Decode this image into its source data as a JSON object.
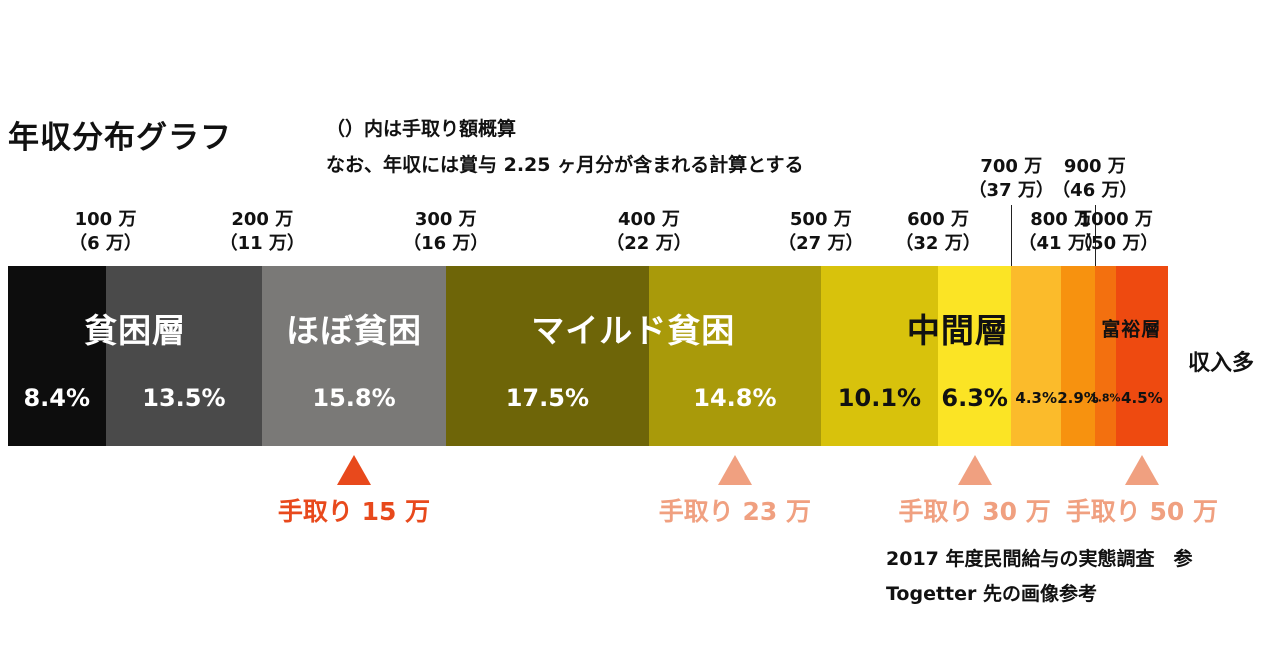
{
  "title": "年収分布グラフ",
  "note_line1": "（）内は手取り額概算",
  "note_line2": "なお、年収には賞与 2.25 ヶ月分が含まれる計算とする",
  "side_label": "収入多",
  "source_line1": "2017 年度民間給与の実態調査　参",
  "source_line2": "Togetter 先の画像参考",
  "chart_data": {
    "type": "bar",
    "orientation": "stacked-horizontal-100%",
    "title": "年収分布グラフ",
    "unit": "%",
    "tick_labels": [
      {
        "income": "100 万",
        "take_home": "（6 万）"
      },
      {
        "income": "200 万",
        "take_home": "（11 万）"
      },
      {
        "income": "300 万",
        "take_home": "（16 万）"
      },
      {
        "income": "400 万",
        "take_home": "（22 万）"
      },
      {
        "income": "500 万",
        "take_home": "（27 万）"
      },
      {
        "income": "600 万",
        "take_home": "（32 万）"
      },
      {
        "income": "700 万",
        "take_home": "（37 万）"
      },
      {
        "income": "800 万",
        "take_home": "（41 万）"
      },
      {
        "income": "900 万",
        "take_home": "（46 万）"
      },
      {
        "income": "1000 万",
        "take_home": "（50 万）"
      }
    ],
    "segments": [
      {
        "label": "8.4%",
        "value": 8.4,
        "color": "#0d0d0d",
        "text_color": "#ffffff"
      },
      {
        "label": "13.5%",
        "value": 13.5,
        "color": "#4a4a4a",
        "text_color": "#ffffff"
      },
      {
        "label": "15.8%",
        "value": 15.8,
        "color": "#7a7977",
        "text_color": "#ffffff"
      },
      {
        "label": "17.5%",
        "value": 17.5,
        "color": "#6e6508",
        "text_color": "#ffffff"
      },
      {
        "label": "14.8%",
        "value": 14.8,
        "color": "#a99a0a",
        "text_color": "#ffffff"
      },
      {
        "label": "10.1%",
        "value": 10.1,
        "color": "#d8c20c",
        "text_color": "#111111"
      },
      {
        "label": "6.3%",
        "value": 6.3,
        "color": "#fbe425",
        "text_color": "#111111"
      },
      {
        "label": "4.3%",
        "value": 4.3,
        "color": "#fbbb2b",
        "text_color": "#111111"
      },
      {
        "label": "2.9%",
        "value": 2.9,
        "color": "#f7920f",
        "text_color": "#111111"
      },
      {
        "label": "1.8%",
        "value": 1.8,
        "color": "#f3700f",
        "text_color": "#111111"
      },
      {
        "label": "4.5%",
        "value": 4.5,
        "color": "#ee4a10",
        "text_color": "#111111"
      }
    ],
    "groups": [
      {
        "label": "貧困層",
        "segments": [
          0,
          1
        ],
        "color": "#ffffff"
      },
      {
        "label": "ほぼ貧困",
        "segments": [
          2
        ],
        "color": "#ffffff"
      },
      {
        "label": "マイルド貧困",
        "segments": [
          3,
          4
        ],
        "color": "#ffffff"
      },
      {
        "label": "中間層",
        "segments": [
          5,
          8
        ],
        "color": "#111111"
      },
      {
        "label": "富裕層",
        "segments": [
          9,
          10
        ],
        "color": "#111111"
      }
    ],
    "take_home_markers": [
      {
        "label": "手取り 15 万",
        "at_segment": 2,
        "color": "#e8491c"
      },
      {
        "label": "手取り 23 万",
        "at_segment": 4,
        "color": "#f0a080"
      },
      {
        "label": "手取り 30 万",
        "at_segment": 6,
        "color": "#f0a080"
      },
      {
        "label": "手取り 50 万",
        "at_segment": 10,
        "color": "#f0a080"
      }
    ]
  }
}
